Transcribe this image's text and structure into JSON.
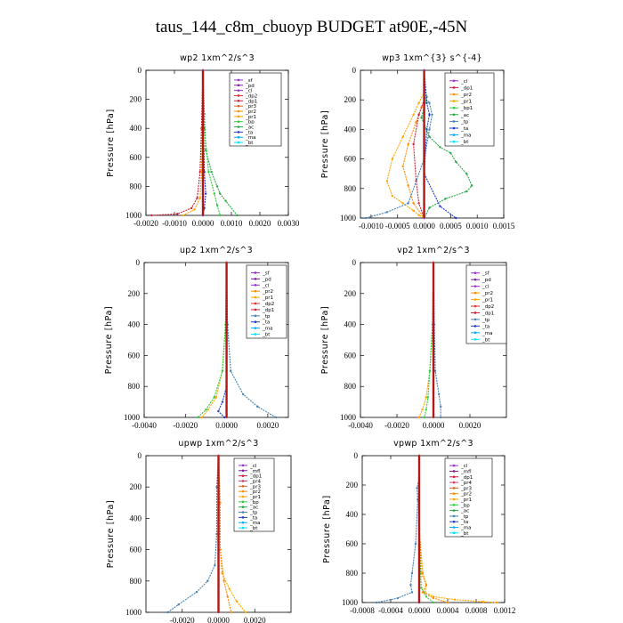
{
  "page": {
    "title": "taus_144_c8m_cbuoyp  BUDGET at90E,-45N"
  },
  "colors": {
    "sf": "#9b30d0",
    "pd": "#7a1e9a",
    "cl": "#9b30d0",
    "mfl": "#7a1e9a",
    "dp1": "#cc1f3a",
    "dp2": "#e03030",
    "pr1": "#ffa500",
    "pr2": "#ff8c00",
    "pr3": "#e06020",
    "pr4": "#d04060",
    "bp": "#2ecc40",
    "bp1": "#2ecc40",
    "ac": "#27a845",
    "tp": "#4682b4",
    "ta": "#1f3cc8",
    "ma": "#00aaff",
    "bt": "#00e5ff"
  },
  "chart_data": [
    {
      "type": "line",
      "title": "wp2   1xm^2/s^3",
      "ylabel": "Pressure [hPa]",
      "xlim": [
        -0.002,
        0.003
      ],
      "ylim": [
        1000,
        0
      ],
      "xticks": [
        "-0.0020",
        "-0.0010",
        "0.0000",
        "0.0010",
        "0.0020",
        "0.0030"
      ],
      "yticks": [
        "0",
        "200",
        "400",
        "600",
        "800",
        "1000"
      ],
      "legend": [
        "_sf",
        "_pd",
        "_cl",
        "_dp2",
        "_dp1",
        "_pr3",
        "_pr2",
        "_pr1",
        "_bp",
        "_ac",
        "_ta",
        "_ma",
        "_bt"
      ],
      "series": [
        {
          "name": "_dp1",
          "color": "dp1",
          "x": [
            0,
            -5e-05,
            -0.0001,
            -0.0002,
            -0.0004,
            -0.0009,
            -0.0018
          ],
          "y": [
            0,
            400,
            700,
            880,
            950,
            990,
            1000
          ]
        },
        {
          "name": "_pr1",
          "color": "pr1",
          "x": [
            0,
            -2e-05,
            -5e-05,
            -0.0001,
            -0.0003,
            -0.0007
          ],
          "y": [
            0,
            400,
            700,
            880,
            960,
            1000
          ]
        },
        {
          "name": "_ac",
          "color": "ac",
          "x": [
            0,
            5e-05,
            0.0001,
            0.0003,
            0.0005,
            0.0006,
            0.0008,
            0.0012
          ],
          "y": [
            0,
            300,
            550,
            700,
            800,
            850,
            900,
            1000
          ]
        },
        {
          "name": "_bp",
          "color": "bp",
          "x": [
            0,
            5e-05,
            0.0002,
            0.0004,
            0.0005,
            0.0006
          ],
          "y": [
            0,
            400,
            700,
            850,
            930,
            1000
          ]
        },
        {
          "name": "_ta",
          "color": "ta",
          "x": [
            0,
            2e-05,
            5e-05,
            0.0001,
            5e-05,
            0
          ],
          "y": [
            0,
            400,
            700,
            850,
            950,
            1000
          ]
        },
        {
          "name": "_cl",
          "color": "cl",
          "x": [
            0,
            0,
            0,
            0
          ],
          "y": [
            0,
            400,
            800,
            1000
          ]
        }
      ]
    },
    {
      "type": "line",
      "title": "wp3   1xm^{3} s^{-4}",
      "ylabel": "Pressure [hPa]",
      "xlim": [
        -0.0012,
        0.0015
      ],
      "ylim": [
        1000,
        0
      ],
      "xticks": [
        "-0.0010",
        "-0.0005",
        "0.0000",
        "0.0005",
        "0.0010",
        "0.0015"
      ],
      "yticks": [
        "0",
        "200",
        "400",
        "600",
        "800",
        "1000"
      ],
      "legend": [
        "_cl",
        "_dp1",
        "_pr2",
        "_pr1",
        "_bp1",
        "_ac",
        "_tp",
        "_ta",
        "_ma",
        "_bt"
      ],
      "series": [
        {
          "name": "_ac",
          "color": "ac",
          "x": [
            0,
            0,
            5e-05,
            0,
            -5e-05,
            0.0001,
            0.0003,
            0.0005,
            0.0006,
            0.0008,
            0.0009,
            0.0008,
            0.0004,
            0.0001,
            0
          ],
          "y": [
            0,
            100,
            180,
            250,
            320,
            450,
            520,
            560,
            620,
            700,
            780,
            820,
            870,
            930,
            1000
          ]
        },
        {
          "name": "_pr1",
          "color": "pr1",
          "x": [
            0,
            0,
            -0.0001,
            -0.0002,
            -0.0004,
            -0.0006,
            -0.0007,
            -0.0006,
            -0.0004,
            -0.0002,
            -0.0001,
            0
          ],
          "y": [
            0,
            150,
            220,
            300,
            450,
            600,
            750,
            850,
            900,
            950,
            980,
            1000
          ]
        },
        {
          "name": "_pr2",
          "color": "pr2",
          "x": [
            0,
            0,
            -5e-05,
            -0.00015,
            -0.0003,
            -0.0004,
            -0.0003,
            -0.0002,
            0
          ],
          "y": [
            0,
            200,
            250,
            350,
            500,
            650,
            780,
            900,
            1000
          ]
        },
        {
          "name": "_dp1",
          "color": "dp1",
          "x": [
            0,
            0,
            -0.0001,
            -0.0002,
            -0.00015,
            -0.0001,
            0
          ],
          "y": [
            0,
            200,
            300,
            500,
            750,
            900,
            1000
          ]
        },
        {
          "name": "_tp",
          "color": "tp",
          "x": [
            0,
            0,
            0.0001,
            0.00015,
            0.0001,
            0,
            -0.0003,
            -0.0007,
            -0.0011
          ],
          "y": [
            0,
            180,
            220,
            300,
            400,
            600,
            900,
            960,
            1000
          ]
        },
        {
          "name": "_ta",
          "color": "ta",
          "x": [
            0,
            5e-05,
            0.0001,
            5e-05,
            0,
            0.0003,
            0.0006
          ],
          "y": [
            0,
            220,
            300,
            400,
            700,
            920,
            1000
          ]
        },
        {
          "name": "_cl",
          "color": "cl",
          "x": [
            0,
            0,
            0
          ],
          "y": [
            0,
            500,
            1000
          ]
        }
      ]
    },
    {
      "type": "line",
      "title": "up2   1xm^2/s^3",
      "ylabel": "Pressure [hPa]",
      "xlim": [
        -0.004,
        0.003
      ],
      "ylim": [
        1000,
        0
      ],
      "xticks": [
        "-0.0040",
        "-0.0020",
        "0.0000",
        "0.0020"
      ],
      "yticks": [
        "0",
        "200",
        "400",
        "600",
        "800",
        "1000"
      ],
      "legend": [
        "_sf",
        "_pd",
        "_cl",
        "_pr2",
        "_pr1",
        "_dp2",
        "_dp1",
        "_tp",
        "_ta",
        "_ma",
        "_bt"
      ],
      "series": [
        {
          "name": "_pr1",
          "color": "pr1",
          "x": [
            0,
            -5e-05,
            -0.0002,
            -0.0005,
            -0.0009,
            -0.0012
          ],
          "y": [
            0,
            400,
            700,
            870,
            950,
            1000
          ]
        },
        {
          "name": "_dp1",
          "color": "bp",
          "x": [
            0,
            -5e-05,
            -0.0002,
            -0.0006,
            -0.001,
            -0.0014
          ],
          "y": [
            0,
            400,
            700,
            870,
            950,
            1000
          ]
        },
        {
          "name": "_tp",
          "color": "tp",
          "x": [
            0,
            5e-05,
            0.0002,
            0.0008,
            0.0015,
            0.0024
          ],
          "y": [
            0,
            400,
            700,
            850,
            930,
            1000
          ]
        },
        {
          "name": "_ta",
          "color": "ta",
          "x": [
            0,
            0,
            0,
            -0.0002,
            -0.0004,
            -0.0001
          ],
          "y": [
            0,
            400,
            800,
            900,
            960,
            1000
          ]
        },
        {
          "name": "_dp2",
          "color": "dp2",
          "x": [
            0,
            0,
            0
          ],
          "y": [
            0,
            500,
            1000
          ]
        }
      ]
    },
    {
      "type": "line",
      "title": "vp2   1xm^2/s^3",
      "ylabel": "Pressure [hPa]",
      "xlim": [
        -0.004,
        0.004
      ],
      "ylim": [
        1000,
        0
      ],
      "xticks": [
        "-0.0040",
        "-0.0020",
        "0.0000",
        "0.0020"
      ],
      "yticks": [
        "0",
        "200",
        "400",
        "600",
        "800",
        "1000"
      ],
      "legend": [
        "_sf",
        "_pd",
        "_cl",
        "_pr2",
        "_pr1",
        "_dp2",
        "_dp1",
        "_tp",
        "_ta",
        "_ma",
        "_bt"
      ],
      "series": [
        {
          "name": "_pr1",
          "color": "pr1",
          "x": [
            0,
            -5e-05,
            -0.0002,
            -0.0004,
            -0.0006,
            -0.0008
          ],
          "y": [
            0,
            400,
            700,
            870,
            950,
            1000
          ]
        },
        {
          "name": "_dp1",
          "color": "bp",
          "x": [
            0,
            -5e-05,
            -0.0002,
            -0.0003,
            -0.0004,
            -0.0005
          ],
          "y": [
            0,
            400,
            700,
            870,
            950,
            1000
          ]
        },
        {
          "name": "_tp",
          "color": "tp",
          "x": [
            0,
            5e-05,
            0.0001,
            0.0003,
            0.0004,
            0.0004
          ],
          "y": [
            0,
            400,
            700,
            850,
            930,
            1000
          ]
        },
        {
          "name": "_dp2",
          "color": "dp2",
          "x": [
            0,
            0,
            0
          ],
          "y": [
            0,
            500,
            1000
          ]
        }
      ]
    },
    {
      "type": "line",
      "title": "upwp   1xm^2/s^3",
      "ylabel": "Pressure [hPa]",
      "xlim": [
        -0.004,
        0.004
      ],
      "ylim": [
        1000,
        0
      ],
      "xticks": [
        "-0.0020",
        "0.0000",
        "0.0020"
      ],
      "yticks": [
        "0",
        "200",
        "400",
        "600",
        "800",
        "1000"
      ],
      "legend": [
        "_cl",
        "_mfl",
        "_dp1",
        "_pr4",
        "_pr3",
        "_pr2",
        "_pr1",
        "_bp",
        "_ac",
        "_tp",
        "_ta",
        "_ma",
        "_bt"
      ],
      "series": [
        {
          "name": "_tp",
          "color": "tp",
          "x": [
            0,
            -0.0001,
            -0.0001,
            -0.0002,
            -0.0006,
            -0.0012,
            -0.0022,
            -0.0028
          ],
          "y": [
            0,
            200,
            500,
            700,
            800,
            870,
            950,
            1000
          ]
        },
        {
          "name": "_pr1",
          "color": "pr1",
          "x": [
            0,
            0.0001,
            0.0001,
            0.0002,
            0.0006,
            0.001,
            0.0015
          ],
          "y": [
            0,
            300,
            600,
            750,
            850,
            930,
            1000
          ]
        },
        {
          "name": "_pr2",
          "color": "pr2",
          "x": [
            0,
            5e-05,
            0.0001,
            0.0003,
            0.0005,
            0.0007
          ],
          "y": [
            0,
            300,
            600,
            800,
            900,
            1000
          ]
        },
        {
          "name": "_dp1",
          "color": "dp1",
          "x": [
            0,
            0,
            0
          ],
          "y": [
            0,
            500,
            1000
          ]
        }
      ]
    },
    {
      "type": "line",
      "title": "vpwp   1xm^2/s^3",
      "ylabel": "Pressure [hPa]",
      "xlim": [
        -0.0008,
        0.0012
      ],
      "ylim": [
        1000,
        0
      ],
      "xticks": [
        "-0.0008",
        "-0.0004",
        "0.0000",
        "0.0004",
        "0.0008",
        "0.0012"
      ],
      "yticks": [
        "0",
        "200",
        "400",
        "600",
        "800",
        "1000"
      ],
      "legend": [
        "_cl",
        "_mfl",
        "_dp1",
        "_pr4",
        "_pr3",
        "_pr2",
        "_pr1",
        "_bp",
        "_ac",
        "_tp",
        "_ta",
        "_ma",
        "_bt"
      ],
      "series": [
        {
          "name": "_tp",
          "color": "tp",
          "x": [
            0,
            0,
            -3e-05,
            -2e-05,
            -5e-05,
            -0.0001,
            -0.00012,
            -0.0001,
            -0.0003,
            -0.0006
          ],
          "y": [
            0,
            150,
            220,
            300,
            600,
            800,
            880,
            930,
            970,
            1000
          ]
        },
        {
          "name": "_pr1",
          "color": "pr1",
          "x": [
            0,
            0,
            3e-05,
            0.0001,
            8e-05,
            0.0002,
            0.0005,
            0.0009,
            0.0011
          ],
          "y": [
            0,
            500,
            800,
            880,
            930,
            960,
            980,
            995,
            1000
          ]
        },
        {
          "name": "_pr2",
          "color": "pr2",
          "x": [
            0,
            0,
            5e-05,
            0.0001,
            5e-05,
            0.0002,
            0.0004
          ],
          "y": [
            0,
            500,
            800,
            880,
            930,
            970,
            1000
          ]
        },
        {
          "name": "_bp",
          "color": "bp",
          "x": [
            0,
            0,
            3e-05,
            0.0001,
            0.0002
          ],
          "y": [
            0,
            600,
            900,
            960,
            1000
          ]
        },
        {
          "name": "_dp1",
          "color": "dp1",
          "x": [
            0,
            0,
            0
          ],
          "y": [
            0,
            500,
            1000
          ]
        }
      ]
    }
  ]
}
